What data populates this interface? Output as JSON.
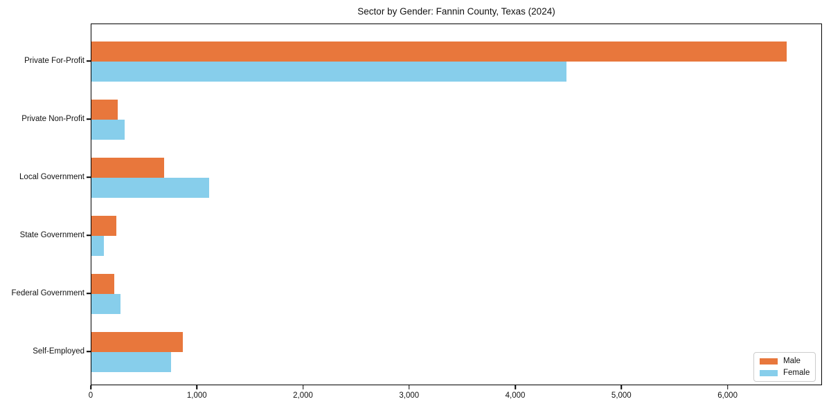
{
  "chart_data": {
    "type": "bar",
    "orientation": "horizontal",
    "title": "Sector by Gender: Fannin County, Texas (2024)",
    "categories": [
      "Private For-Profit",
      "Private Non-Profit",
      "Local Government",
      "State Government",
      "Federal Government",
      "Self-Employed"
    ],
    "series": [
      {
        "name": "Male",
        "color": "#e8773c",
        "values": [
          6550,
          250,
          685,
          235,
          215,
          860
        ]
      },
      {
        "name": "Female",
        "color": "#87ceeb",
        "values": [
          4475,
          315,
          1110,
          120,
          275,
          750
        ]
      }
    ],
    "xlabel": "",
    "ylabel": "",
    "xlim": [
      0,
      6890
    ],
    "xticks": [
      0,
      1000,
      2000,
      3000,
      4000,
      5000,
      6000
    ],
    "xtick_labels": [
      "0",
      "1,000",
      "2,000",
      "3,000",
      "4,000",
      "5,000",
      "6,000"
    ],
    "grid": false,
    "legend_position": "lower right"
  },
  "legend": {
    "items": [
      {
        "label": "Male",
        "color": "#e8773c"
      },
      {
        "label": "Female",
        "color": "#87ceeb"
      }
    ]
  }
}
